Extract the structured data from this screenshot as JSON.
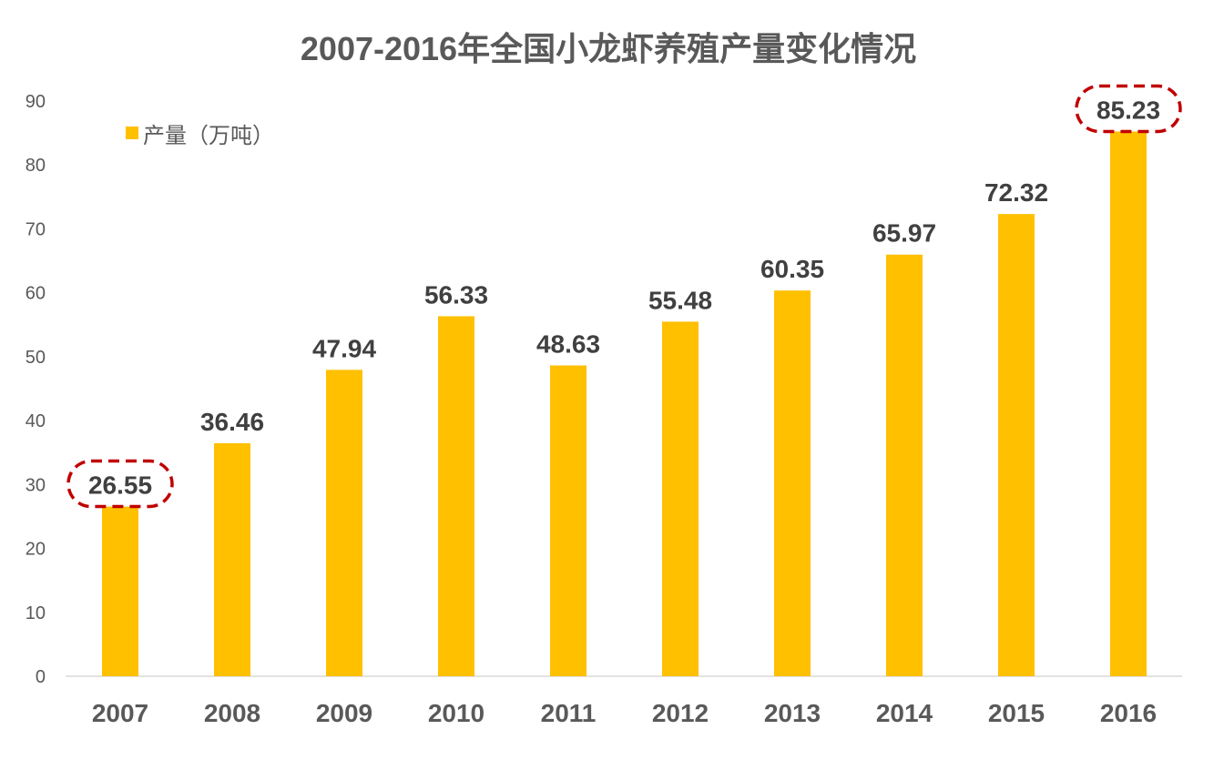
{
  "chart_data": {
    "type": "bar",
    "title": "2007-2016年全国小龙虾养殖产量变化情况",
    "categories": [
      "2007",
      "2008",
      "2009",
      "2010",
      "2011",
      "2012",
      "2013",
      "2014",
      "2015",
      "2016"
    ],
    "series": [
      {
        "name": "产量（万吨）",
        "values": [
          26.55,
          36.46,
          47.94,
          56.33,
          48.63,
          55.48,
          60.35,
          65.97,
          72.32,
          85.23
        ],
        "color": "#FFC000"
      }
    ],
    "data_labels": [
      "26.55",
      "36.46",
      "47.94",
      "56.33",
      "48.63",
      "55.48",
      "60.35",
      "65.97",
      "72.32",
      "85.23"
    ],
    "highlighted": [
      "2007",
      "2016"
    ],
    "highlight_color": "#C00000",
    "ylim": [
      0,
      90
    ],
    "yticks": [
      0,
      10,
      20,
      30,
      40,
      50,
      60,
      70,
      80,
      90
    ],
    "grid": false,
    "legend_position": "top-left",
    "xlabel": "",
    "ylabel": ""
  }
}
